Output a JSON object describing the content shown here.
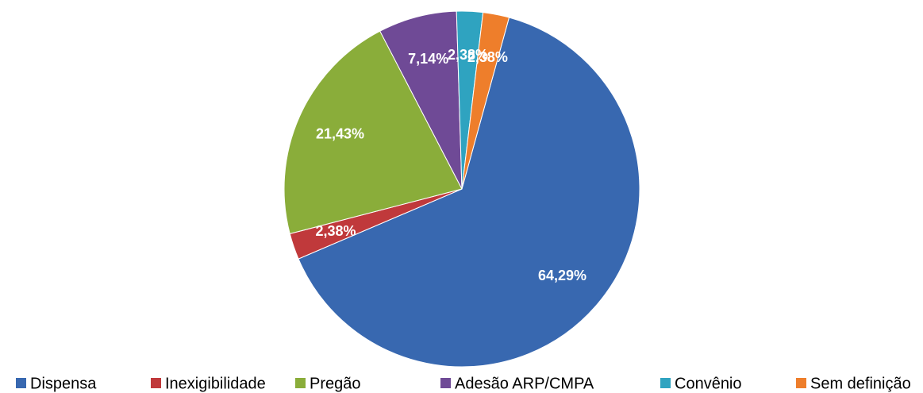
{
  "chart_data": {
    "type": "pie",
    "categories": [
      "Dispensa",
      "Inexigibilidade",
      "Pregão",
      "Adesão ARP/CMPA",
      "Convênio",
      "Sem definição"
    ],
    "values": [
      64.29,
      2.38,
      21.43,
      7.14,
      2.38,
      2.38
    ],
    "value_labels": [
      "64,29%",
      "2,38%",
      "21,43%",
      "7,14%",
      "2,38%",
      "2,38%"
    ],
    "colors": [
      "#3868b0",
      "#c0393b",
      "#8aad3a",
      "#6f4a96",
      "#2fa3c0",
      "#ee7e2b"
    ],
    "legend": "bottom"
  }
}
